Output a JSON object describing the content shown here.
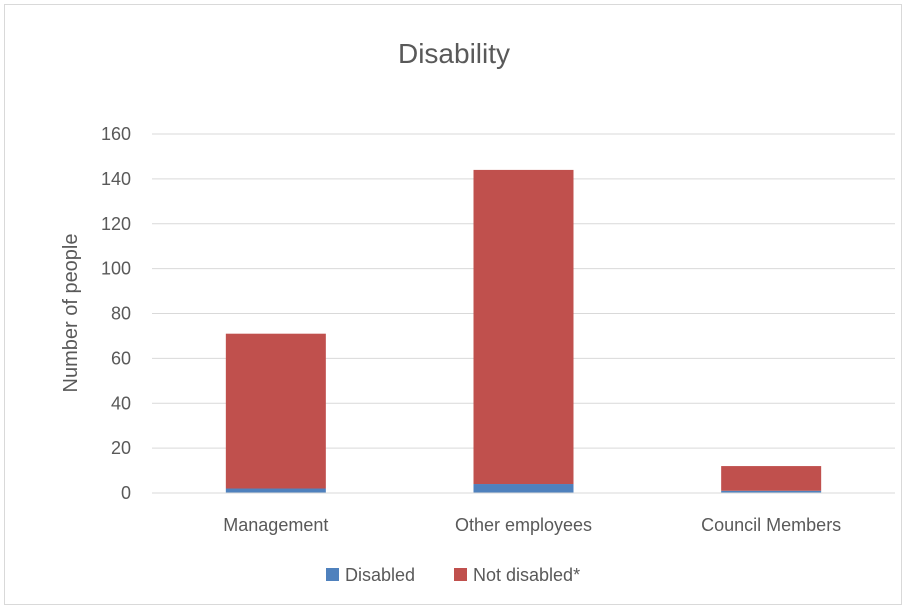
{
  "chart_data": {
    "type": "bar",
    "stacked": true,
    "title": "Disability",
    "xlabel": "",
    "ylabel": "Number of people",
    "categories": [
      "Management",
      "Other employees",
      "Council Members"
    ],
    "series": [
      {
        "name": "Disabled",
        "values": [
          2,
          4,
          1
        ],
        "color": "#4f81bd"
      },
      {
        "name": "Not disabled*",
        "values": [
          69,
          140,
          11
        ],
        "color": "#c0504d"
      }
    ],
    "ylim": [
      0,
      160
    ],
    "yticks": [
      0,
      20,
      40,
      60,
      80,
      100,
      120,
      140,
      160
    ],
    "grid": true,
    "legend_position": "bottom"
  }
}
